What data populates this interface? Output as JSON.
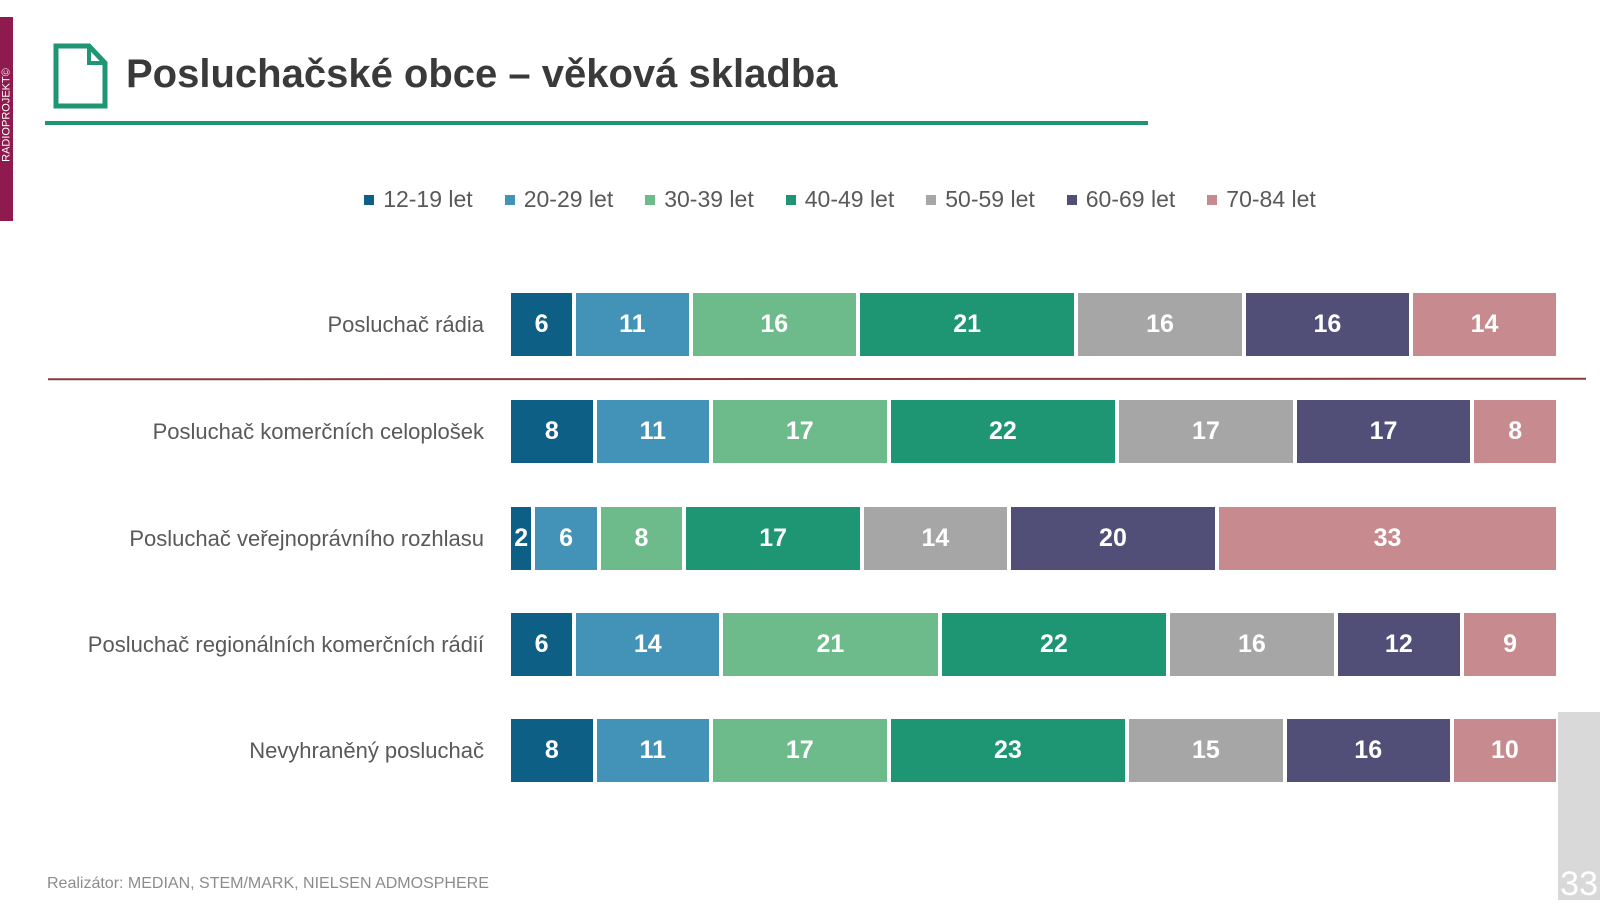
{
  "brand_stripe": "RADIOPROJEKT©",
  "title": "Posluchačské obce – věková skladba",
  "footer": "Realizátor: MEDIAN, STEM/MARK, NIELSEN ADMOSPHERE",
  "page_number": "33",
  "chart_data": {
    "type": "bar",
    "orientation": "horizontal-stacked-100",
    "categories": [
      "Posluchač rádia",
      "Posluchač komerčních celoplošek",
      "Posluchač veřejnoprávního rozhlasu",
      "Posluchač regionálních komerčních rádií",
      "Nevyhraněný posluchač"
    ],
    "series": [
      {
        "name": "12-19 let",
        "color": "#0e5f85",
        "values": [
          6,
          8,
          2,
          6,
          8
        ]
      },
      {
        "name": "20-29 let",
        "color": "#4393b9",
        "values": [
          11,
          11,
          6,
          14,
          11
        ]
      },
      {
        "name": "30-39 let",
        "color": "#6dbb8a",
        "values": [
          16,
          17,
          8,
          21,
          17
        ]
      },
      {
        "name": "40-49 let",
        "color": "#1e9573",
        "values": [
          21,
          22,
          17,
          22,
          23
        ]
      },
      {
        "name": "50-59 let",
        "color": "#a6a6a6",
        "values": [
          16,
          17,
          14,
          16,
          15
        ]
      },
      {
        "name": "60-69 let",
        "color": "#514f77",
        "values": [
          16,
          17,
          20,
          12,
          16
        ]
      },
      {
        "name": "70-84 let",
        "color": "#c78a8e",
        "values": [
          14,
          8,
          33,
          9,
          10
        ]
      }
    ],
    "legend_position": "top",
    "data_labels": true,
    "grid": false
  }
}
